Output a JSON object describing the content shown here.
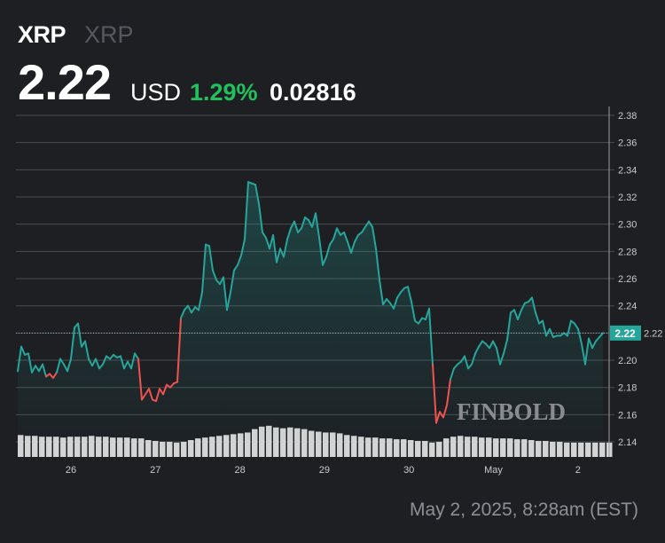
{
  "header": {
    "symbol": "XRP",
    "symbol_secondary": "XRP",
    "price": "2.22",
    "currency": "USD",
    "change_percent": "1.29%",
    "change_abs": "0.02816"
  },
  "footer": {
    "date": "May 2, 2025, 8:28am (EST)"
  },
  "watermark": "FINBOLD",
  "colors": {
    "up": "#26a69a",
    "down": "#ef5350",
    "percent_up": "#22c15e",
    "volume": "#d4d4d4",
    "background": "#1d1f23"
  },
  "chart_data": {
    "type": "line",
    "y_ticks": [
      "2.38",
      "2.36",
      "2.34",
      "2.32",
      "2.30",
      "2.28",
      "2.26",
      "2.24",
      "2.22",
      "2.20",
      "2.18",
      "2.16",
      "2.14"
    ],
    "ylim": [
      2.13,
      2.38
    ],
    "x_ticks": [
      "26",
      "27",
      "28",
      "29",
      "30",
      "May",
      "2"
    ],
    "grid": true,
    "last_price_label": "2.22",
    "x_start": "Apr 25 09:00",
    "x_step": "1 hour",
    "values": [
      2.192,
      2.21,
      2.204,
      2.205,
      2.191,
      2.196,
      2.192,
      2.197,
      2.188,
      2.19,
      2.187,
      2.191,
      2.201,
      2.197,
      2.192,
      2.201,
      2.224,
      2.227,
      2.21,
      2.214,
      2.201,
      2.196,
      2.201,
      2.194,
      2.197,
      2.203,
      2.201,
      2.204,
      2.202,
      2.203,
      2.194,
      2.199,
      2.194,
      2.205,
      2.201,
      2.171,
      2.175,
      2.179,
      2.171,
      2.17,
      2.179,
      2.175,
      2.182,
      2.18,
      2.183,
      2.184,
      2.231,
      2.237,
      2.24,
      2.235,
      2.239,
      2.237,
      2.25,
      2.285,
      2.284,
      2.266,
      2.259,
      2.256,
      2.261,
      2.237,
      2.25,
      2.266,
      2.27,
      2.277,
      2.289,
      2.331,
      2.33,
      2.329,
      2.315,
      2.294,
      2.29,
      2.282,
      2.292,
      2.272,
      2.282,
      2.276,
      2.289,
      2.297,
      2.302,
      2.294,
      2.297,
      2.305,
      2.303,
      2.298,
      2.308,
      2.29,
      2.27,
      2.276,
      2.285,
      2.289,
      2.297,
      2.292,
      2.294,
      2.287,
      2.279,
      2.287,
      2.292,
      2.294,
      2.298,
      2.302,
      2.298,
      2.282,
      2.259,
      2.241,
      2.245,
      2.242,
      2.238,
      2.246,
      2.25,
      2.253,
      2.254,
      2.243,
      2.229,
      2.227,
      2.231,
      2.23,
      2.238,
      2.197,
      2.154,
      2.162,
      2.158,
      2.167,
      2.186,
      2.194,
      2.197,
      2.199,
      2.203,
      2.194,
      2.197,
      2.205,
      2.21,
      2.214,
      2.212,
      2.209,
      2.214,
      2.209,
      2.197,
      2.205,
      2.215,
      2.235,
      2.237,
      2.23,
      2.237,
      2.242,
      2.243,
      2.246,
      2.235,
      2.227,
      2.229,
      2.218,
      2.223,
      2.217,
      2.218,
      2.218,
      2.22,
      2.218,
      2.229,
      2.227,
      2.223,
      2.212,
      2.197,
      2.216,
      2.209,
      2.214,
      2.217,
      2.22
    ],
    "volume_relative": [
      26,
      25,
      25,
      24,
      24,
      24,
      23,
      24,
      24,
      24,
      25,
      24,
      24,
      23,
      23,
      23,
      22,
      22,
      20,
      19,
      18,
      18,
      17,
      18,
      20,
      22,
      23,
      24,
      25,
      26,
      27,
      28,
      29,
      33,
      36,
      37,
      35,
      34,
      35,
      34,
      33,
      31,
      30,
      29,
      29,
      28,
      26,
      25,
      24,
      23,
      23,
      22,
      22,
      21,
      21,
      20,
      19,
      19,
      17,
      18,
      22,
      24,
      25,
      24,
      24,
      23,
      23,
      22,
      22,
      22,
      21,
      21,
      20,
      19,
      19,
      18,
      18,
      17,
      17,
      17,
      17,
      17,
      17,
      17
    ]
  }
}
